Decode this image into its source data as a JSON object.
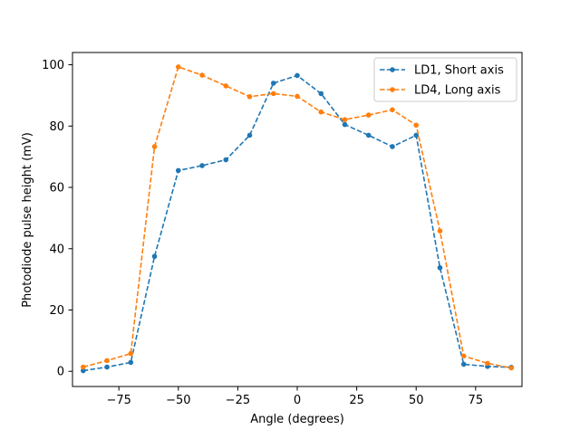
{
  "chart_data": {
    "type": "line",
    "xlabel": "Angle (degrees)",
    "ylabel": "Photodiode pulse height (mV)",
    "xlim": [
      -94.5,
      94.5
    ],
    "ylim": [
      -4.95,
      104.0
    ],
    "xticks": [
      -75,
      -50,
      -25,
      0,
      25,
      50,
      75
    ],
    "xtick_labels": [
      "−75",
      "−50",
      "−25",
      "0",
      "25",
      "50",
      "75"
    ],
    "yticks": [
      0,
      20,
      40,
      60,
      80,
      100
    ],
    "ytick_labels": [
      "0",
      "20",
      "40",
      "60",
      "80",
      "100"
    ],
    "legend_position": "upper-right",
    "x": [
      -90,
      -80,
      -70,
      -60,
      -50,
      -40,
      -30,
      -20,
      -10,
      0,
      10,
      20,
      30,
      40,
      50,
      60,
      70,
      80,
      90
    ],
    "series": [
      {
        "name": "LD1, Short axis",
        "color": "#1f77b4",
        "values": [
          0.2,
          1.4,
          2.9,
          37.5,
          65.5,
          67.1,
          69.0,
          77.0,
          94.0,
          96.5,
          90.6,
          80.5,
          77.0,
          73.3,
          77.0,
          33.8,
          2.3,
          1.6,
          1.3
        ]
      },
      {
        "name": "LD4, Long axis",
        "color": "#ff7f0e",
        "values": [
          1.4,
          3.5,
          5.8,
          73.3,
          99.3,
          96.6,
          93.1,
          89.6,
          90.6,
          89.7,
          84.6,
          82.1,
          83.6,
          85.3,
          80.3,
          45.8,
          5.0,
          2.6,
          1.1
        ]
      }
    ]
  }
}
